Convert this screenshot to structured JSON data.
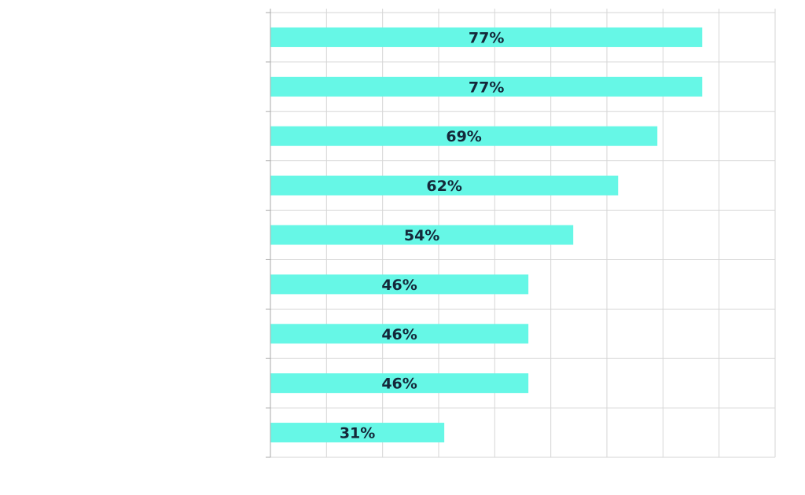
{
  "chart_data": {
    "type": "bar",
    "orientation": "horizontal",
    "title": "",
    "xlabel": "",
    "ylabel": "",
    "categories": [
      "",
      "",
      "",
      "",
      "",
      "",
      "",
      "",
      ""
    ],
    "values": [
      77,
      77,
      69,
      62,
      54,
      46,
      46,
      46,
      31
    ],
    "value_labels": [
      "77%",
      "77%",
      "69%",
      "62%",
      "54%",
      "46%",
      "46%",
      "46%",
      "31%"
    ],
    "xlim": [
      0,
      90
    ],
    "x_gridline_step": 10,
    "grid": true,
    "legend": "none",
    "bar_color": "#66f7e6",
    "label_color": "#14283a",
    "grid_color": "#d6d6d6"
  }
}
